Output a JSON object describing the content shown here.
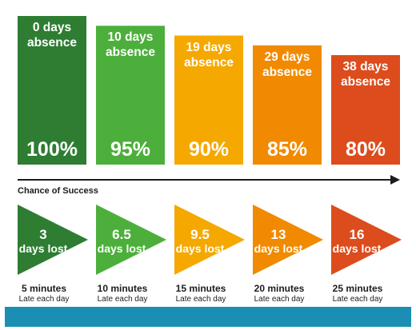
{
  "chart_data": {
    "type": "bar",
    "axis_label": "Chance of Success",
    "bars": [
      {
        "absence": "0 days absence",
        "absence_lines": [
          "0 days",
          "absence"
        ],
        "success": "100%",
        "success_value": 100,
        "color": "#2e7d32"
      },
      {
        "absence": "10 days absence",
        "absence_lines": [
          "10 days",
          "absence"
        ],
        "success": "95%",
        "success_value": 95,
        "color": "#4caf3b"
      },
      {
        "absence": "19 days absence",
        "absence_lines": [
          "19 days",
          "absence"
        ],
        "success": "90%",
        "success_value": 90,
        "color": "#f5a800"
      },
      {
        "absence": "29 days absence",
        "absence_lines": [
          "29 days",
          "absence"
        ],
        "success": "85%",
        "success_value": 85,
        "color": "#f18a00"
      },
      {
        "absence": "38 days absence",
        "absence_lines": [
          "38 days",
          "absence"
        ],
        "success": "80%",
        "success_value": 80,
        "color": "#dc4c1d"
      }
    ],
    "lateness": [
      {
        "days": "3",
        "lost_label": "days lost",
        "minutes": "5 minutes",
        "sub": "Late each day",
        "color": "#2e7d32"
      },
      {
        "days": "6.5",
        "lost_label": "days lost",
        "minutes": "10 minutes",
        "sub": "Late each day",
        "color": "#4caf3b"
      },
      {
        "days": "9.5",
        "lost_label": "days lost",
        "minutes": "15 minutes",
        "sub": "Late each day",
        "color": "#f5a800"
      },
      {
        "days": "13",
        "lost_label": "days lost",
        "minutes": "20 minutes",
        "sub": "Late each day",
        "color": "#f18a00"
      },
      {
        "days": "16",
        "lost_label": "days lost",
        "minutes": "25 minutes",
        "sub": "Late each day",
        "color": "#dc4c1d"
      }
    ],
    "band_color": "#1b8fb3",
    "arrow_color": "#1c1c1c"
  }
}
